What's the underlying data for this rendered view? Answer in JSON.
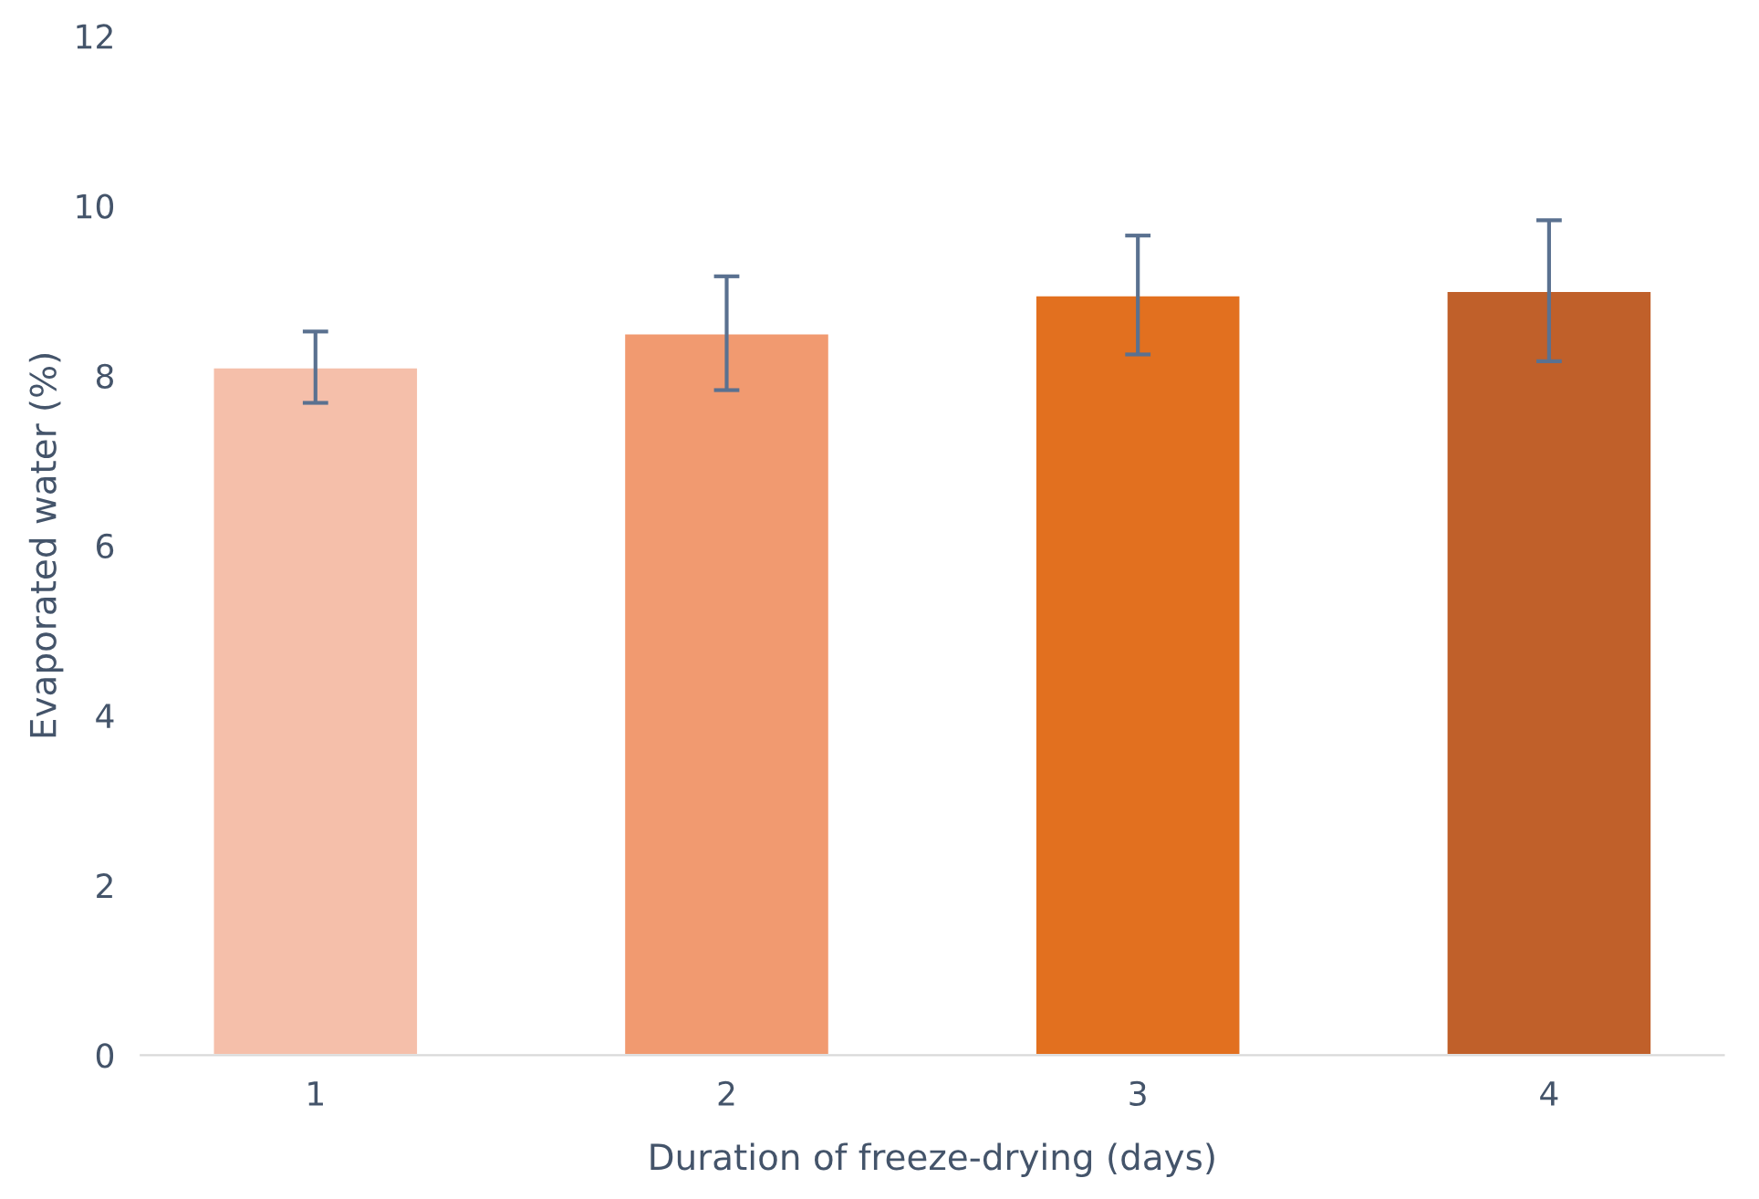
{
  "chart_data": {
    "type": "bar",
    "xlabel": "Duration of freeze-drying (days)",
    "ylabel": "Evaporated water (%)",
    "categories": [
      "1",
      "2",
      "3",
      "4"
    ],
    "values": [
      8.1,
      8.5,
      8.95,
      9.0
    ],
    "errors": [
      0.42,
      0.67,
      0.7,
      0.83
    ],
    "colors": [
      "#f5bfaa",
      "#f19a70",
      "#e2701f",
      "#c0602a"
    ],
    "ylim": [
      0,
      12
    ],
    "yticks": [
      0,
      2,
      4,
      6,
      8,
      10,
      12
    ],
    "grid": false
  }
}
